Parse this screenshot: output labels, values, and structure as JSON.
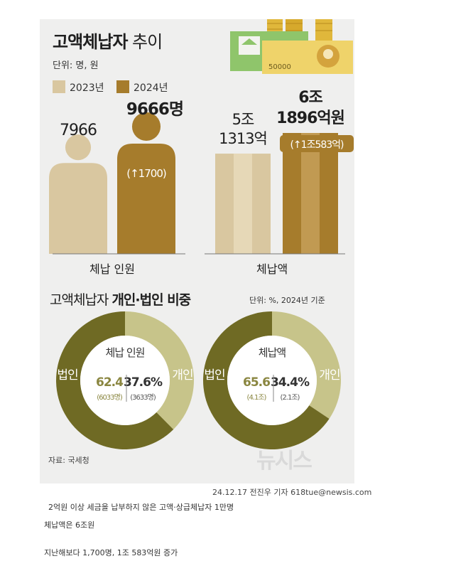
{
  "title": {
    "bold": "고액체납자",
    "light": " 추이"
  },
  "unit": "단위: 명, 원",
  "legend": [
    {
      "label": "2023년",
      "color": "#d9c7a0"
    },
    {
      "label": "2024년",
      "color": "#a67c2c"
    }
  ],
  "section2": {
    "light": "고액체납자 ",
    "bold": "개인·법인 비중"
  },
  "unit2": "단위: %, 2024년 기준",
  "source": "자료: 국세청",
  "watermark": "뉴시스",
  "credit": "24.12.17 전진우 기자 618tue@newsis.com",
  "banknote_value": "50000",
  "captions": [
    "2억원 이상 세금을 납부하지 않은 고액·상급체납자 1만명",
    "체납액은 6조원",
    "지난해보다 1,700명, 1조 583억원 증가"
  ],
  "colors": {
    "light": "#d9c7a0",
    "dark": "#a67c2c",
    "donut_light": "#c7c48a",
    "donut_dark": "#6f6a24"
  },
  "chart_data": [
    {
      "type": "bar",
      "category": "체납 인원",
      "x": [
        "2023년",
        "2024년"
      ],
      "values": [
        7966,
        9666
      ],
      "value_labels": [
        "7966",
        "9666명"
      ],
      "change_label": "(↑1700)"
    },
    {
      "type": "bar",
      "category": "체납액",
      "x": [
        "2023년",
        "2024년"
      ],
      "values": [
        51313,
        61896
      ],
      "value_labels": [
        [
          "5조",
          "1313억"
        ],
        [
          "6조",
          "1896억원"
        ]
      ],
      "change_label": "(↑1조583억)"
    },
    {
      "type": "pie",
      "title": "체납 인원",
      "slices": [
        {
          "label": "법인",
          "value": 62.4,
          "sub": "(6033명)"
        },
        {
          "label": "개인",
          "value": 37.6,
          "sub": "(3633명)"
        }
      ],
      "value_text": [
        "62.4",
        "37.6%"
      ]
    },
    {
      "type": "pie",
      "title": "체납액",
      "slices": [
        {
          "label": "법인",
          "value": 65.6,
          "sub": "(4.1조)"
        },
        {
          "label": "개인",
          "value": 34.4,
          "sub": "(2.1조)"
        }
      ],
      "value_text": [
        "65.6",
        "34.4%"
      ]
    }
  ]
}
